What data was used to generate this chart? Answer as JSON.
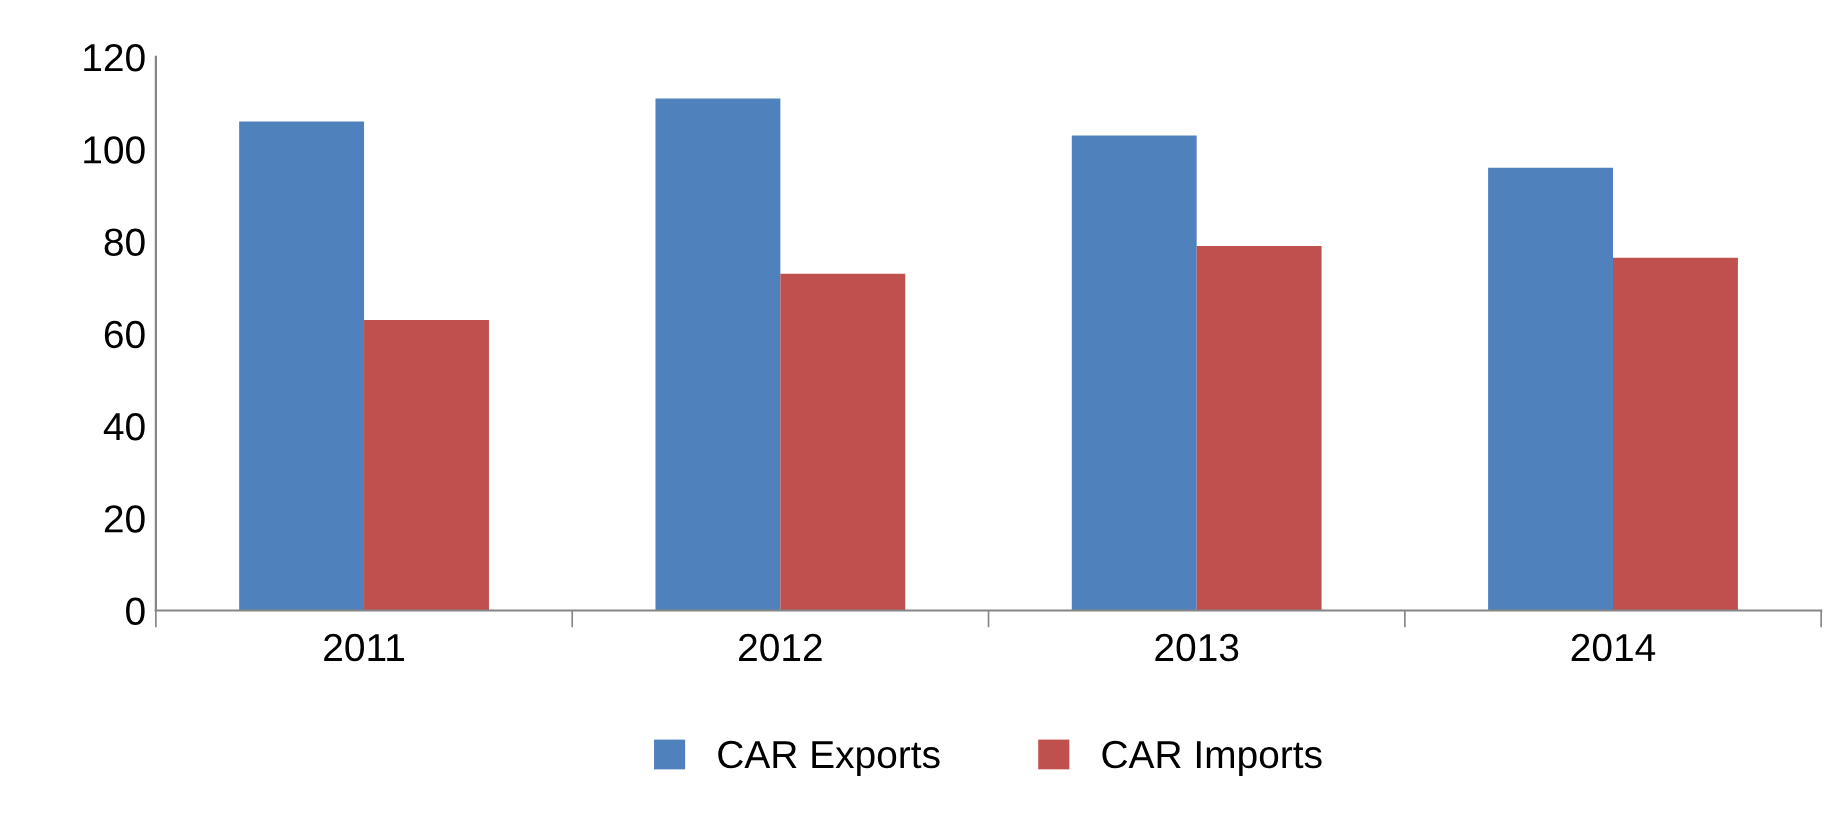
{
  "chart_data": {
    "type": "bar",
    "categories": [
      "2011",
      "2012",
      "2013",
      "2014"
    ],
    "series": [
      {
        "name": "CAR Exports",
        "color": "#4f81bd",
        "values": [
          106,
          111,
          103,
          96
        ]
      },
      {
        "name": "CAR Imports",
        "color": "#c0504d",
        "values": [
          63,
          73,
          79,
          76.5
        ]
      }
    ],
    "ylim": [
      0,
      120
    ],
    "yticks": [
      0,
      20,
      40,
      60,
      80,
      100,
      120
    ],
    "grid": false,
    "legend": "bottom"
  }
}
